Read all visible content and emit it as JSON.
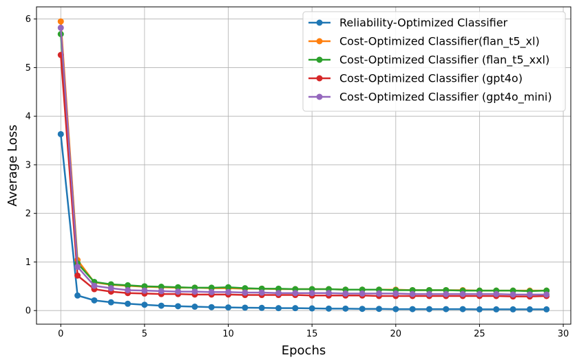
{
  "chart_data": {
    "type": "line",
    "title": "",
    "xlabel": "Epochs",
    "ylabel": "Average Loss",
    "xlim": [
      -1.45,
      30.45
    ],
    "ylim": [
      -0.28,
      6.25
    ],
    "xticks": [
      0,
      5,
      10,
      15,
      20,
      25,
      30
    ],
    "yticks": [
      0,
      1,
      2,
      3,
      4,
      5,
      6
    ],
    "grid": true,
    "legend_position": "upper right",
    "x": [
      0,
      1,
      2,
      3,
      4,
      5,
      6,
      7,
      8,
      9,
      10,
      11,
      12,
      13,
      14,
      15,
      16,
      17,
      18,
      19,
      20,
      21,
      22,
      23,
      24,
      25,
      26,
      27,
      28,
      29
    ],
    "series": [
      {
        "name": "Reliability-Optimized Classifier",
        "color": "#1f77b4",
        "values": [
          3.63,
          0.31,
          0.21,
          0.17,
          0.14,
          0.12,
          0.1,
          0.09,
          0.08,
          0.07,
          0.065,
          0.06,
          0.055,
          0.05,
          0.05,
          0.045,
          0.04,
          0.04,
          0.035,
          0.035,
          0.03,
          0.03,
          0.03,
          0.03,
          0.03,
          0.025,
          0.025,
          0.025,
          0.025,
          0.025
        ]
      },
      {
        "name": "Cost-Optimized Classifier(flan_t5_xl)",
        "color": "#ff7f0e",
        "values": [
          5.95,
          1.04,
          0.58,
          0.53,
          0.51,
          0.49,
          0.48,
          0.47,
          0.47,
          0.46,
          0.46,
          0.45,
          0.45,
          0.44,
          0.44,
          0.44,
          0.44,
          0.43,
          0.43,
          0.43,
          0.43,
          0.42,
          0.42,
          0.42,
          0.42,
          0.41,
          0.41,
          0.41,
          0.41,
          0.41
        ]
      },
      {
        "name": "Cost-Optimized Classifier (flan_t5_xxl)",
        "color": "#2ca02c",
        "values": [
          5.69,
          0.97,
          0.59,
          0.54,
          0.52,
          0.5,
          0.49,
          0.48,
          0.47,
          0.47,
          0.48,
          0.46,
          0.45,
          0.45,
          0.44,
          0.44,
          0.44,
          0.43,
          0.43,
          0.43,
          0.42,
          0.42,
          0.42,
          0.42,
          0.41,
          0.41,
          0.41,
          0.41,
          0.4,
          0.41
        ]
      },
      {
        "name": "Cost-Optimized Classifier (gpt4o)",
        "color": "#d62728",
        "values": [
          5.26,
          0.72,
          0.44,
          0.39,
          0.36,
          0.35,
          0.34,
          0.34,
          0.33,
          0.33,
          0.33,
          0.32,
          0.32,
          0.32,
          0.32,
          0.31,
          0.31,
          0.31,
          0.31,
          0.3,
          0.3,
          0.3,
          0.3,
          0.3,
          0.3,
          0.3,
          0.3,
          0.29,
          0.29,
          0.3
        ]
      },
      {
        "name": "Cost-Optimized Classifier (gpt4o_mini)",
        "color": "#9467bd",
        "values": [
          5.82,
          0.9,
          0.51,
          0.46,
          0.42,
          0.41,
          0.4,
          0.39,
          0.39,
          0.38,
          0.38,
          0.37,
          0.37,
          0.36,
          0.36,
          0.36,
          0.36,
          0.35,
          0.35,
          0.35,
          0.35,
          0.34,
          0.34,
          0.34,
          0.34,
          0.34,
          0.34,
          0.33,
          0.33,
          0.33
        ]
      }
    ]
  }
}
